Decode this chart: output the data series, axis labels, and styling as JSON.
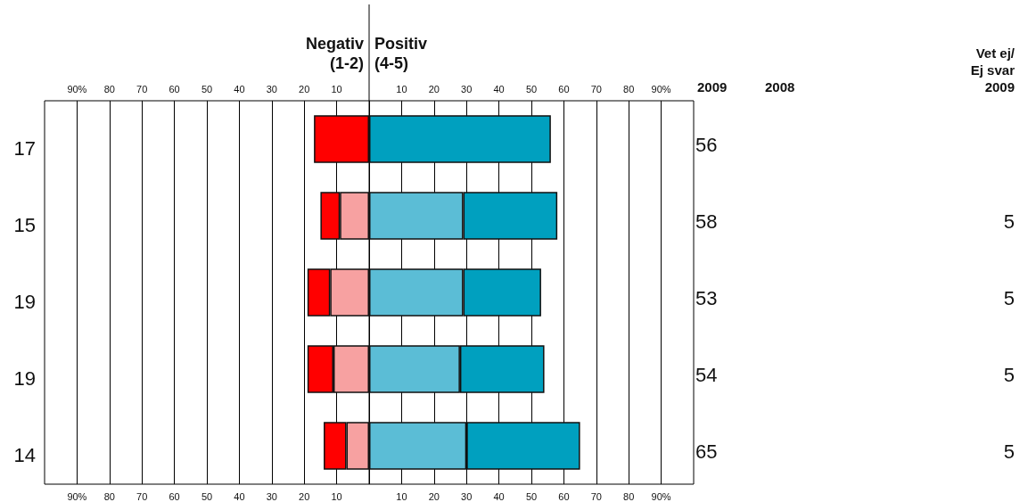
{
  "chart_data": {
    "type": "bar",
    "orientation": "horizontal",
    "stacked": true,
    "categories": [
      null,
      null,
      null,
      null,
      null
    ],
    "series": [
      {
        "color": "#f7a1a1",
        "values": [
          null,
          -9,
          -12,
          -11,
          -7
        ]
      },
      {
        "color": "#ff0000",
        "values": [
          -17,
          -6,
          -7,
          -8,
          -7
        ]
      },
      {
        "color": "#5bbdd6",
        "values": [
          null,
          29,
          29,
          28,
          30
        ]
      },
      {
        "color": "#00a0bf",
        "values": [
          56,
          29,
          24,
          26,
          35
        ]
      }
    ],
    "xlim": [
      -100,
      100
    ],
    "xticks": [
      {
        "value": -90,
        "label": "90%"
      },
      {
        "value": -80,
        "label": "80"
      },
      {
        "value": -70,
        "label": "70"
      },
      {
        "value": -60,
        "label": "60"
      },
      {
        "value": -50,
        "label": "50"
      },
      {
        "value": -40,
        "label": "40"
      },
      {
        "value": -30,
        "label": "30"
      },
      {
        "value": -20,
        "label": "20"
      },
      {
        "value": -10,
        "label": "10"
      },
      {
        "value": 0,
        "label": null
      },
      10,
      20,
      30,
      40,
      50,
      60,
      70,
      80,
      {
        "value": 90,
        "label": "90%"
      }
    ],
    "x2lim": [
      -100,
      100
    ],
    "x2ticks": [
      {
        "value": -90,
        "label": "90%"
      },
      {
        "value": -80,
        "label": "80"
      },
      {
        "value": -70,
        "label": "70"
      },
      {
        "value": -60,
        "label": "60"
      },
      {
        "value": -50,
        "label": "50"
      },
      {
        "value": -40,
        "label": "40"
      },
      {
        "value": -30,
        "label": "30"
      },
      {
        "value": -20,
        "label": "20"
      },
      {
        "value": -10,
        "label": "10"
      },
      {
        "value": 0,
        "label": null
      },
      10,
      20,
      30,
      40,
      50,
      60,
      70,
      80,
      {
        "value": 90,
        "label": "90%"
      }
    ],
    "grid": "x",
    "annotations": [
      "Negativ\n(1-2)",
      "Positiv\n(4-5)",
      "2009",
      "2008",
      "Vet ej/\nEj svar\n2009",
      "17",
      "15",
      "19",
      "19",
      "14",
      "56",
      "58",
      "53",
      "54",
      "65",
      "5",
      "5",
      "5",
      "5"
    ]
  }
}
